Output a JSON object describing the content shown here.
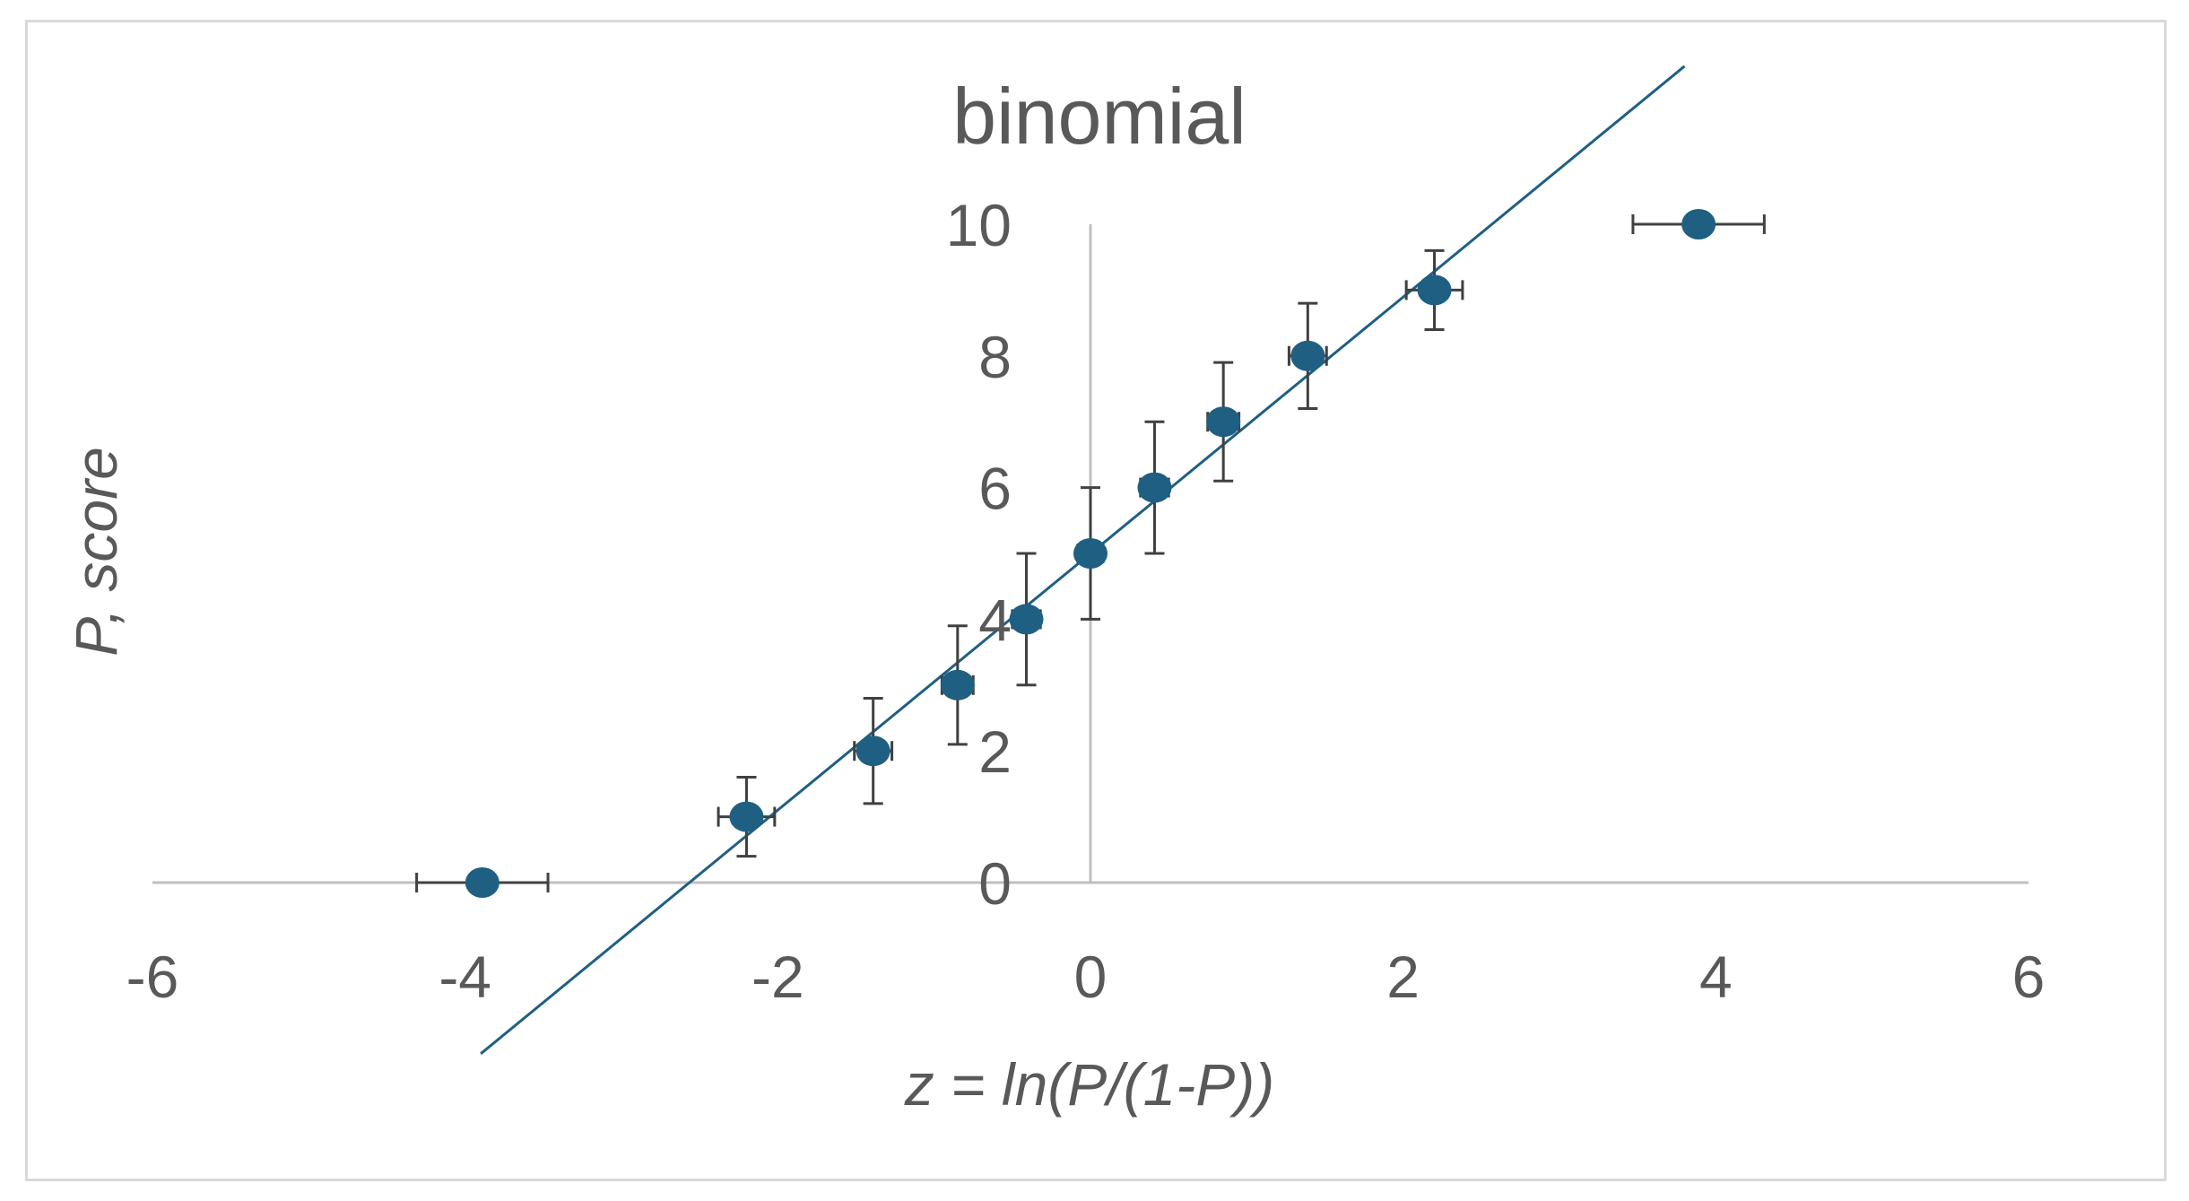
{
  "chart_data": {
    "type": "scatter",
    "title": "binomial",
    "xlabel": "z = ln(P/(1-P))",
    "ylabel": "P, score",
    "xlim": [
      -6,
      6
    ],
    "ylim": [
      0,
      10
    ],
    "x_ticks": [
      "-6",
      "-4",
      "-2",
      "0",
      "2",
      "4",
      "6"
    ],
    "y_ticks": [
      "0",
      "2",
      "4",
      "6",
      "8",
      "10"
    ],
    "grid": false,
    "legend": "none",
    "colors": {
      "marker": "#1f5f82",
      "trendline": "#1f5f82",
      "error_bar": "#404040",
      "axis": "#bfbfbf",
      "text": "#595959"
    },
    "series": [
      {
        "x": [
          -3.89,
          -2.2,
          -1.39,
          -0.85,
          -0.41,
          0.0,
          0.41,
          0.85,
          1.39,
          2.2,
          3.89
        ],
        "y": [
          0,
          1,
          2,
          3,
          4,
          5,
          6,
          7,
          8,
          9,
          10
        ],
        "x_error": [
          0.42,
          0.18,
          0.12,
          0.1,
          0.09,
          0.08,
          0.09,
          0.1,
          0.12,
          0.18,
          0.42
        ],
        "y_error": [
          0,
          0.6,
          0.8,
          0.9,
          1.0,
          1.0,
          1.0,
          0.9,
          0.8,
          0.6,
          0
        ],
        "trendline": {
          "x": [
            -3.9,
            3.8
          ],
          "y": [
            -2.6,
            12.4
          ]
        }
      }
    ]
  }
}
